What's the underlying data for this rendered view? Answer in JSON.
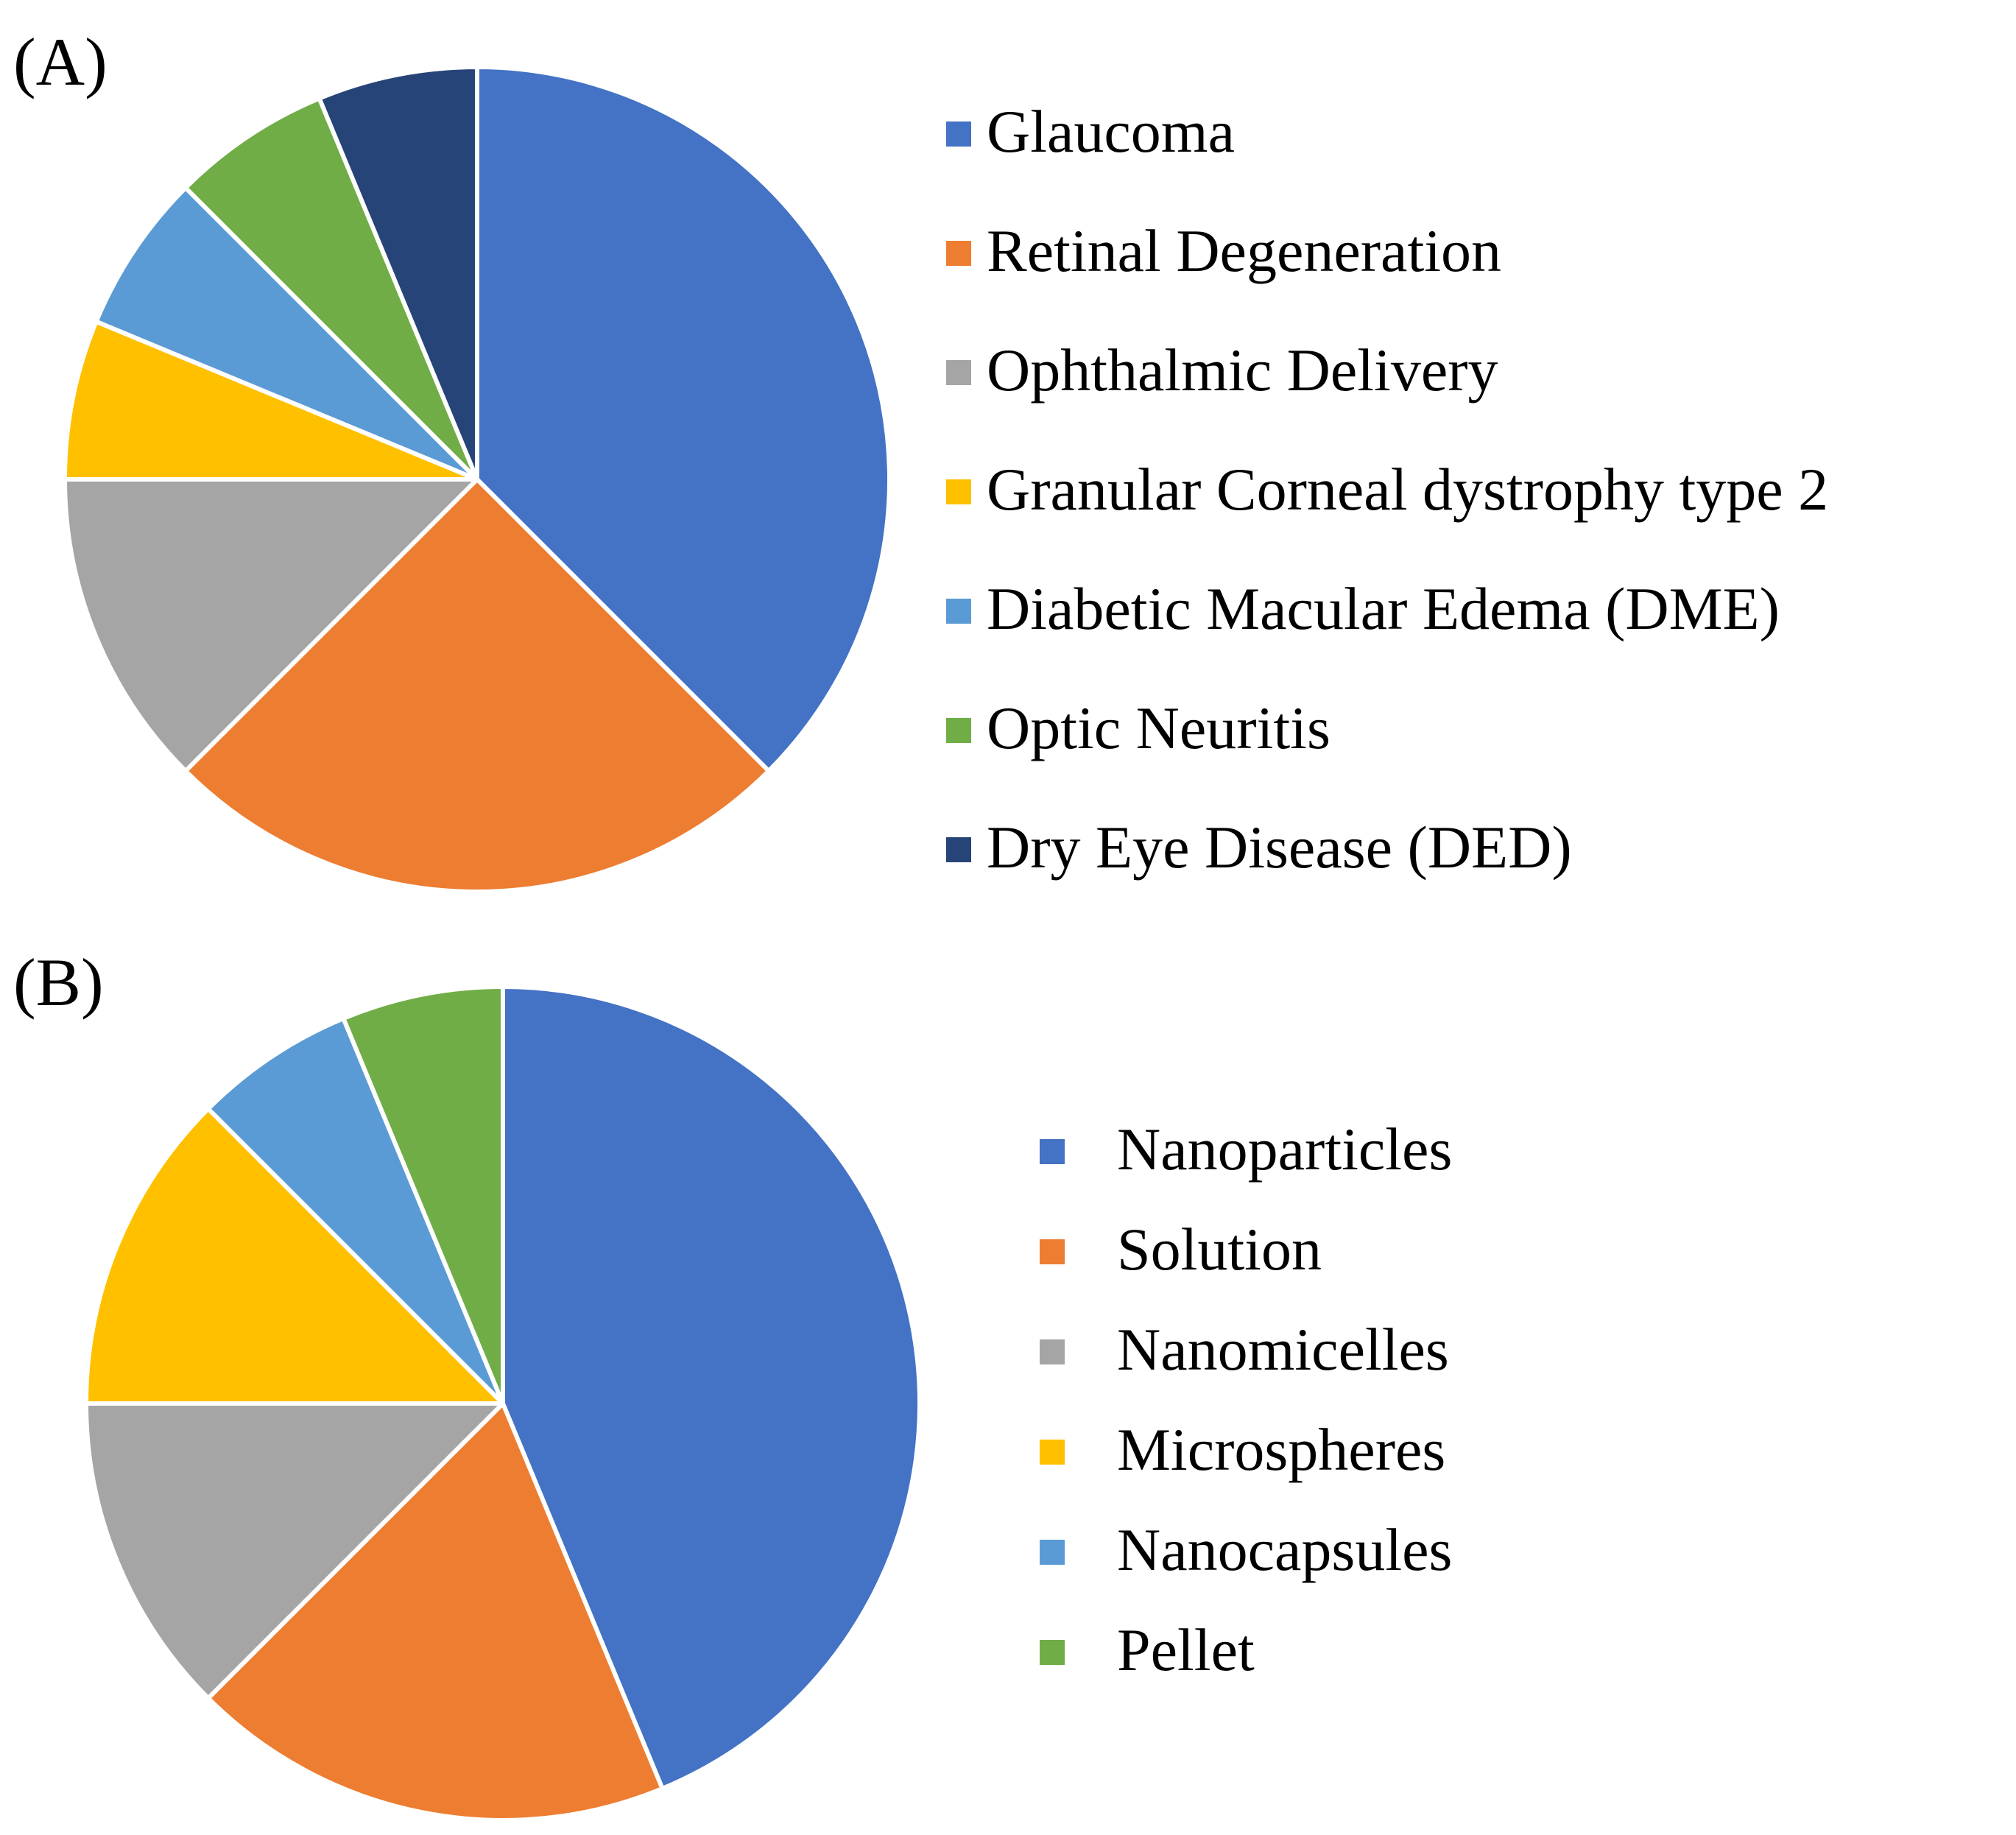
{
  "chart_data": [
    {
      "type": "pie",
      "panel_label": "(A)",
      "start_angle": "12 o'clock",
      "direction": "clockwise",
      "legend_position": "right",
      "series": [
        {
          "name": "Glaucoma",
          "value": 6,
          "color": "#4472C4"
        },
        {
          "name": "Retinal Degeneration",
          "value": 4,
          "color": "#ED7D31"
        },
        {
          "name": "Ophthalmic Delivery",
          "value": 2,
          "color": "#A5A5A5"
        },
        {
          "name": "Granular Corneal dystrophy type 2",
          "value": 1,
          "color": "#FFC000"
        },
        {
          "name": "Diabetic Macular Edema (DME)",
          "value": 1,
          "color": "#5B9BD5"
        },
        {
          "name": "Optic Neuritis",
          "value": 1,
          "color": "#70AD47"
        },
        {
          "name": "Dry Eye Disease (DED)",
          "value": 1,
          "color": "#264478"
        }
      ]
    },
    {
      "type": "pie",
      "panel_label": "(B)",
      "start_angle": "12 o'clock",
      "direction": "clockwise",
      "legend_position": "right",
      "series": [
        {
          "name": "Nanoparticles",
          "value": 7,
          "color": "#4472C4"
        },
        {
          "name": "Solution",
          "value": 3,
          "color": "#ED7D31"
        },
        {
          "name": "Nanomicelles",
          "value": 2,
          "color": "#A5A5A5"
        },
        {
          "name": "Microspheres",
          "value": 2,
          "color": "#FFC000"
        },
        {
          "name": "Nanocapsules",
          "value": 1,
          "color": "#5B9BD5"
        },
        {
          "name": "Pellet",
          "value": 1,
          "color": "#70AD47"
        }
      ]
    }
  ]
}
